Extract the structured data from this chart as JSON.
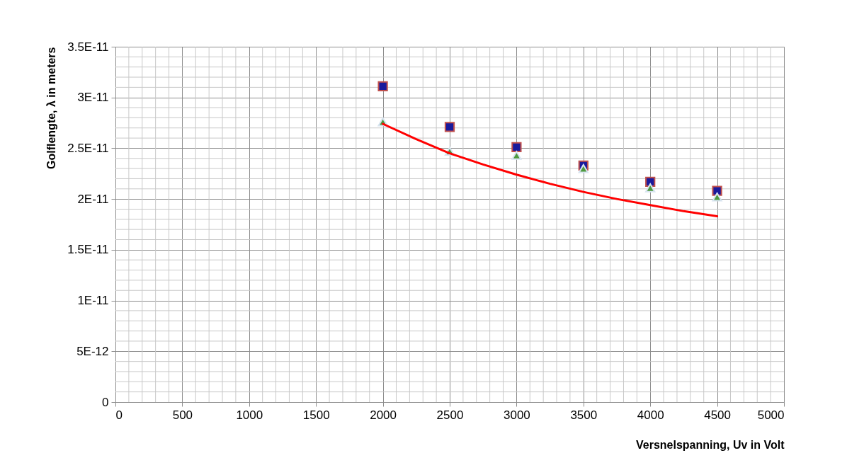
{
  "chart_data": {
    "type": "scatter",
    "xlabel": "Versnelspanning, Uv in Volt",
    "ylabel": "Golflengte, λ in  meters",
    "x": [
      2000,
      2500,
      3000,
      3500,
      4000,
      4500
    ],
    "series": [
      {
        "marker": "square",
        "color": "#1a1a9c",
        "values": [
          3.11e-11,
          2.71e-11,
          2.51e-11,
          2.33e-11,
          2.17e-11,
          2.08e-11
        ]
      },
      {
        "marker": "triangle",
        "color": "#4e9a3e",
        "values": [
          2.76e-11,
          2.47e-11,
          2.43e-11,
          2.3e-11,
          2.11e-11,
          2.02e-11
        ]
      },
      {
        "type": "line",
        "marker": "none",
        "line_style": "solid",
        "color": "#ff0000",
        "x": [
          2000,
          2250,
          2500,
          2750,
          3000,
          3250,
          3500,
          3750,
          4000,
          4250,
          4500
        ],
        "values": [
          2.74e-11,
          2.59e-11,
          2.45e-11,
          2.34e-11,
          2.24e-11,
          2.15e-11,
          2.07e-11,
          2e-11,
          1.94e-11,
          1.88e-11,
          1.83e-11
        ]
      }
    ],
    "xlim": [
      0,
      5000
    ],
    "xticks": [
      0,
      {
        "value": 100,
        "label": null
      },
      {
        "value": 200,
        "label": null
      },
      {
        "value": 300,
        "label": null
      },
      {
        "value": 400,
        "label": null
      },
      500,
      {
        "value": 600,
        "label": null
      },
      {
        "value": 700,
        "label": null
      },
      {
        "value": 800,
        "label": null
      },
      {
        "value": 900,
        "label": null
      },
      1000,
      {
        "value": 1100,
        "label": null
      },
      {
        "value": 1200,
        "label": null
      },
      {
        "value": 1300,
        "label": null
      },
      {
        "value": 1400,
        "label": null
      },
      1500,
      {
        "value": 1600,
        "label": null
      },
      {
        "value": 1700,
        "label": null
      },
      {
        "value": 1800,
        "label": null
      },
      {
        "value": 1900,
        "label": null
      },
      2000,
      {
        "value": 2100,
        "label": null
      },
      {
        "value": 2200,
        "label": null
      },
      {
        "value": 2300,
        "label": null
      },
      {
        "value": 2400,
        "label": null
      },
      2500,
      {
        "value": 2600,
        "label": null
      },
      {
        "value": 2700,
        "label": null
      },
      {
        "value": 2800,
        "label": null
      },
      {
        "value": 2900,
        "label": null
      },
      3000,
      {
        "value": 3100,
        "label": null
      },
      {
        "value": 3200,
        "label": null
      },
      {
        "value": 3300,
        "label": null
      },
      {
        "value": 3400,
        "label": null
      },
      3500,
      {
        "value": 3600,
        "label": null
      },
      {
        "value": 3700,
        "label": null
      },
      {
        "value": 3800,
        "label": null
      },
      {
        "value": 3900,
        "label": null
      },
      4000,
      {
        "value": 4100,
        "label": null
      },
      {
        "value": 4200,
        "label": null
      },
      {
        "value": 4300,
        "label": null
      },
      {
        "value": 4400,
        "label": null
      },
      4500,
      {
        "value": 4600,
        "label": null
      },
      {
        "value": 4700,
        "label": null
      },
      {
        "value": 4800,
        "label": null
      },
      {
        "value": 4900,
        "label": null
      },
      5000
    ],
    "ylim": [
      0,
      3.5e-11
    ],
    "yticks": [
      0,
      {
        "value": 1e-12,
        "label": null
      },
      {
        "value": 2e-12,
        "label": null
      },
      {
        "value": 3e-12,
        "label": null
      },
      {
        "value": 4e-12,
        "label": null
      },
      {
        "value": 5e-12,
        "label": "5E-12"
      },
      {
        "value": 6e-12,
        "label": null
      },
      {
        "value": 7e-12,
        "label": null
      },
      {
        "value": 8e-12,
        "label": null
      },
      {
        "value": 9e-12,
        "label": null
      },
      {
        "value": 1e-11,
        "label": "1E-11"
      },
      {
        "value": 1.1e-11,
        "label": null
      },
      {
        "value": 1.2e-11,
        "label": null
      },
      {
        "value": 1.3e-11,
        "label": null
      },
      {
        "value": 1.4e-11,
        "label": null
      },
      {
        "value": 1.5e-11,
        "label": "1.5E-11"
      },
      {
        "value": 1.6e-11,
        "label": null
      },
      {
        "value": 1.7e-11,
        "label": null
      },
      {
        "value": 1.8e-11,
        "label": null
      },
      {
        "value": 1.9e-11,
        "label": null
      },
      {
        "value": 2e-11,
        "label": "2E-11"
      },
      {
        "value": 2.1e-11,
        "label": null
      },
      {
        "value": 2.2e-11,
        "label": null
      },
      {
        "value": 2.3e-11,
        "label": null
      },
      {
        "value": 2.4e-11,
        "label": null
      },
      {
        "value": 2.5e-11,
        "label": "2.5E-11"
      },
      {
        "value": 2.6e-11,
        "label": null
      },
      {
        "value": 2.7e-11,
        "label": null
      },
      {
        "value": 2.8e-11,
        "label": null
      },
      {
        "value": 2.9e-11,
        "label": null
      },
      {
        "value": 3e-11,
        "label": "3E-11"
      },
      {
        "value": 3.1e-11,
        "label": null
      },
      {
        "value": 3.2e-11,
        "label": null
      },
      {
        "value": 3.3e-11,
        "label": null
      },
      {
        "value": 3.4e-11,
        "label": null
      },
      {
        "value": 3.5e-11,
        "label": "3.5E-11"
      }
    ],
    "grid": true
  }
}
